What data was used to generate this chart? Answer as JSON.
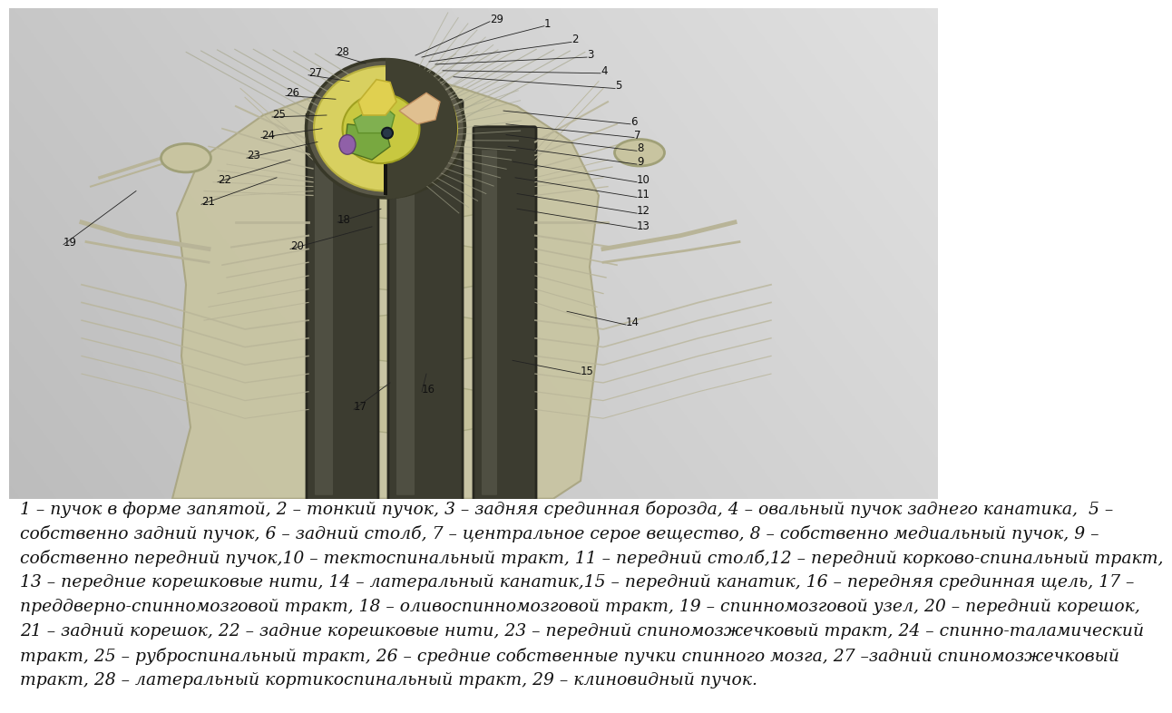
{
  "fig_width": 10.24,
  "fig_height": 7.67,
  "bg_top_left": "#c8c8c8",
  "bg_top_right": "#e8e8e8",
  "bg_bottom": "#d8d8d8",
  "caption_text_lines": [
    "1 – пучок в форме запятой, 2 – тонкий пучок, 3 – задняя срединная борозда, 4 – овальный пучок заднего канатика,  5 –",
    "собственно задний пучок, 6 – задний столб, 7 – центральное серое вещество, 8 – собственно медиальный пучок, 9 –",
    "собственно передний пучок,10 – тектоспинальный тракт, 11 – передний столб,12 – передний корково-спинальный тракт,",
    "13 – передние корешковые нити, 14 – латеральный канатик,15 – передний канатик, 16 – передняя срединная щель, 17 –",
    "преддверно-спинномозговой тракт, 18 – оливоспинномозговой тракт, 19 – спинномозговой узел, 20 – передний корешок,",
    "21 – задний корешок, 22 – задние корешковые нити, 23 – передний спиномозжечковый тракт, 24 – спинно-таламический",
    "тракт, 25 – руброспинальный тракт, 26 – средние собственные пучки спинного мозга, 27 –задний спиномозжечковый",
    "тракт, 28 – латеральный кортикоспинальный тракт, 29 – клиновидный пучок."
  ],
  "caption_fontsize": 13.5
}
